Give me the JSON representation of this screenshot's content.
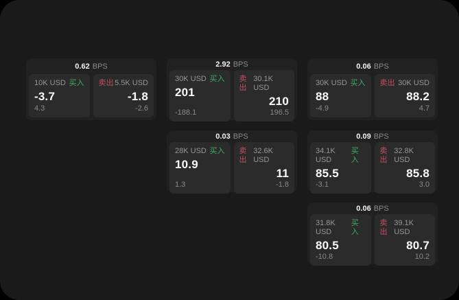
{
  "unit_label": "BPS",
  "colors": {
    "buy_green": "#3fae66",
    "sell_red": "#c25063",
    "panel_bg": "#1a1a1a",
    "card_bg": "#212121",
    "pane_bg": "#2b2b2b"
  },
  "cards": [
    {
      "bps": "0.62",
      "buy": {
        "amount": "10K USD",
        "side_label": "买入",
        "price": "-3.7",
        "delta": "4.3"
      },
      "sell": {
        "amount": "5.5K USD",
        "side_label": "卖出",
        "price": "-1.8",
        "delta": "-2.6"
      }
    },
    {
      "bps": "2.92",
      "buy": {
        "amount": "30K USD",
        "side_label": "买入",
        "price": "201",
        "delta": "-188.1"
      },
      "sell": {
        "amount": "30.1K USD",
        "side_label": "卖出",
        "price": "210",
        "delta": "196.5"
      }
    },
    {
      "bps": "0.06",
      "buy": {
        "amount": "30K USD",
        "side_label": "买入",
        "price": "88",
        "delta": "-4.9"
      },
      "sell": {
        "amount": "30K USD",
        "side_label": "卖出",
        "price": "88.2",
        "delta": "4.7"
      }
    },
    {
      "bps": "0.03",
      "buy": {
        "amount": "28K USD",
        "side_label": "买入",
        "price": "10.9",
        "delta": "1.3"
      },
      "sell": {
        "amount": "32.6K USD",
        "side_label": "卖出",
        "price": "11",
        "delta": "-1.8"
      }
    },
    {
      "bps": "0.09",
      "buy": {
        "amount": "34.1K USD",
        "side_label": "买入",
        "price": "85.5",
        "delta": "-3.1"
      },
      "sell": {
        "amount": "32.8K USD",
        "side_label": "卖出",
        "price": "85.8",
        "delta": "3.0"
      }
    },
    {
      "bps": "0.06",
      "buy": {
        "amount": "31.8K USD",
        "side_label": "买入",
        "price": "80.5",
        "delta": "-10.8"
      },
      "sell": {
        "amount": "39.1K USD",
        "side_label": "卖出",
        "price": "80.7",
        "delta": "10.2"
      }
    }
  ]
}
